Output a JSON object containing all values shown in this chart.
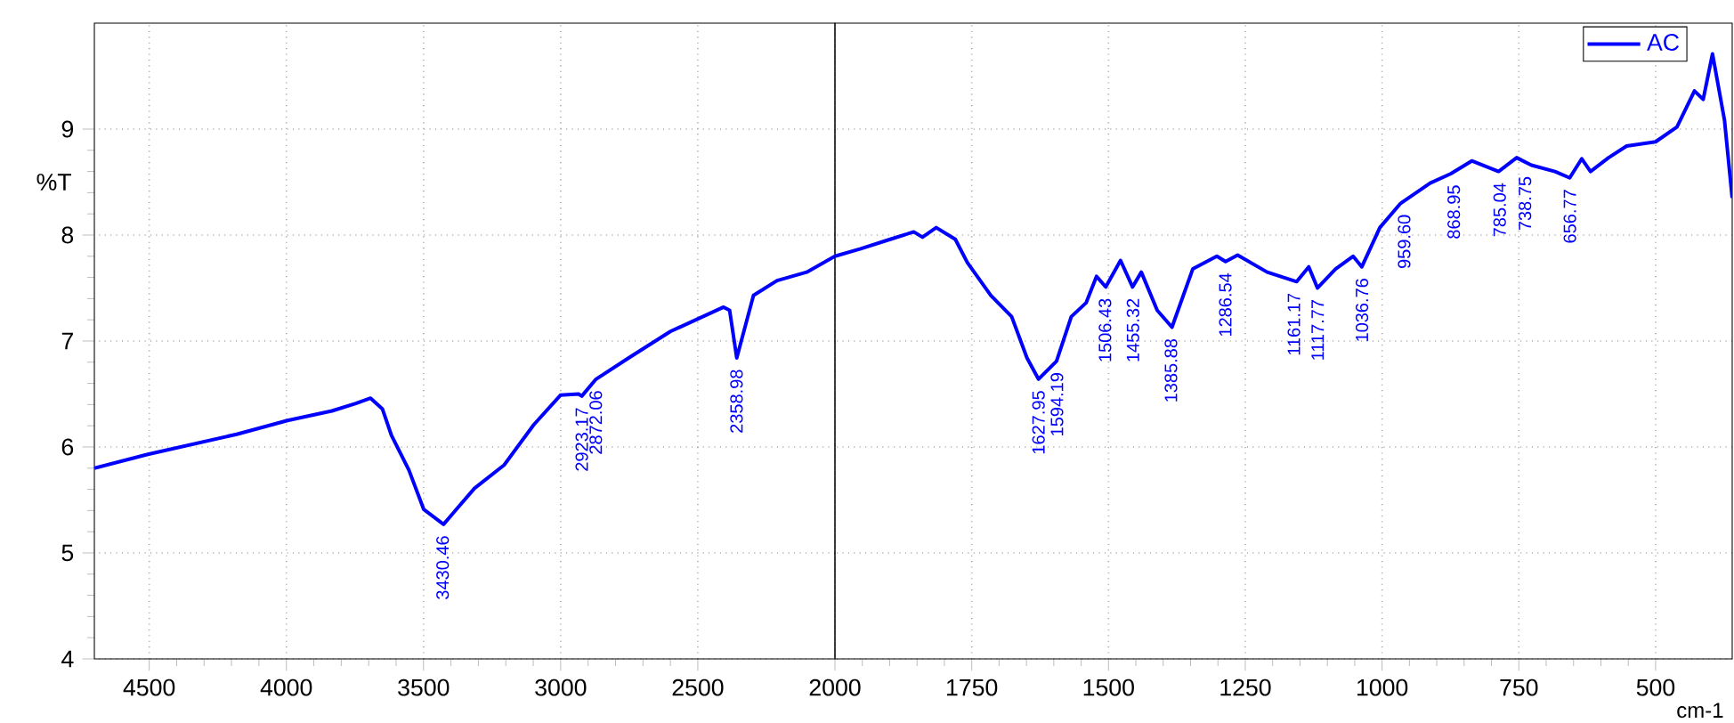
{
  "chart_data": [
    {
      "type": "line",
      "ylabel": "%T",
      "xlim": [
        4700,
        2000
      ],
      "xticks": [
        4500,
        4000,
        3500,
        3000,
        2500
      ],
      "ylim": [
        4,
        10
      ],
      "yticks": [
        4,
        5,
        6,
        7,
        8,
        9
      ],
      "grid": true,
      "series": [
        {
          "color": "#0000ff",
          "x": [
            4700,
            4505,
            4181,
            3996,
            3834,
            3747,
            3693,
            3650,
            3617,
            3553,
            3499,
            3427,
            3314,
            3206,
            3098,
            3000,
            2935,
            2923,
            2871,
            2752,
            2600,
            2406,
            2384,
            2358,
            2297,
            2211,
            2103,
            2000
          ],
          "values": [
            5.8,
            5.93,
            6.12,
            6.25,
            6.34,
            6.41,
            6.46,
            6.36,
            6.11,
            5.78,
            5.41,
            5.27,
            5.61,
            5.83,
            6.21,
            6.49,
            6.5,
            6.48,
            6.64,
            6.84,
            7.09,
            7.32,
            7.29,
            6.84,
            7.43,
            7.57,
            7.65,
            7.8
          ]
        }
      ],
      "annotations": [
        {
          "text": "3430.46",
          "x": 3430.46,
          "y": 5.27
        },
        {
          "text": "2923.17",
          "x": 2923.17,
          "y": 6.48
        },
        {
          "text": "2872.06",
          "x": 2872.06,
          "y": 6.64
        },
        {
          "text": "2358.98",
          "x": 2358.98,
          "y": 6.84
        }
      ]
    },
    {
      "type": "line",
      "xlabel": "cm-1",
      "xlim": [
        2000,
        360
      ],
      "xticks": [
        2000,
        1750,
        1500,
        1250,
        1000,
        750,
        500
      ],
      "ylim": [
        4,
        10
      ],
      "yticks": [
        4,
        5,
        6,
        7,
        8,
        9
      ],
      "grid": true,
      "tick_labels": "x",
      "legend": "top right",
      "series": [
        {
          "name": "AC",
          "color": "#0000ff",
          "x": [
            2000,
            1953,
            1899,
            1856,
            1840,
            1815,
            1780,
            1758,
            1715,
            1677,
            1649,
            1628,
            1595,
            1568,
            1541,
            1522,
            1505,
            1478,
            1456,
            1440,
            1411,
            1384,
            1346,
            1302,
            1286,
            1264,
            1210,
            1156,
            1134,
            1118,
            1085,
            1053,
            1037,
            1004,
            966,
            912,
            874,
            836,
            787,
            754,
            727,
            684,
            657,
            635,
            619,
            586,
            553,
            500,
            461,
            429,
            413,
            396,
            374,
            360
          ],
          "values": [
            7.8,
            7.87,
            7.96,
            8.03,
            7.98,
            8.07,
            7.96,
            7.74,
            7.43,
            7.23,
            6.84,
            6.64,
            6.81,
            7.23,
            7.36,
            7.61,
            7.51,
            7.76,
            7.51,
            7.65,
            7.29,
            7.13,
            7.68,
            7.8,
            7.75,
            7.81,
            7.65,
            7.56,
            7.7,
            7.5,
            7.68,
            7.8,
            7.7,
            8.07,
            8.3,
            8.49,
            8.58,
            8.7,
            8.6,
            8.73,
            8.66,
            8.6,
            8.54,
            8.72,
            8.6,
            8.73,
            8.84,
            8.88,
            9.02,
            9.36,
            9.28,
            9.71,
            9.08,
            8.35
          ]
        }
      ],
      "annotations": [
        {
          "text": "1627.95",
          "x": 1627.95,
          "y": 6.64
        },
        {
          "text": "1594.19",
          "x": 1594.19,
          "y": 6.81
        },
        {
          "text": "1506.43",
          "x": 1506.43,
          "y": 7.51
        },
        {
          "text": "1455.32",
          "x": 1455.32,
          "y": 7.51
        },
        {
          "text": "1385.88",
          "x": 1385.88,
          "y": 7.13
        },
        {
          "text": "1286.54",
          "x": 1286.54,
          "y": 7.75
        },
        {
          "text": "1161.17",
          "x": 1161.17,
          "y": 7.56
        },
        {
          "text": "1117.77",
          "x": 1117.77,
          "y": 7.5
        },
        {
          "text": "1036.76",
          "x": 1036.76,
          "y": 7.7
        },
        {
          "text": "959.60",
          "x": 959.6,
          "y": 8.3
        },
        {
          "text": "868.95",
          "x": 868.95,
          "y": 8.58
        },
        {
          "text": "785.04",
          "x": 785.04,
          "y": 8.6
        },
        {
          "text": "738.75",
          "x": 738.75,
          "y": 8.66
        },
        {
          "text": "656.77",
          "x": 656.77,
          "y": 8.54
        }
      ]
    }
  ]
}
